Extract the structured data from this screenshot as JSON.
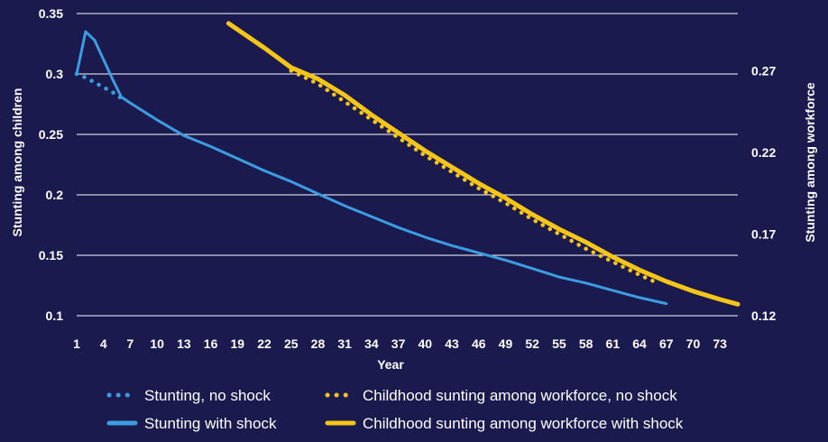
{
  "chart_data": {
    "type": "line",
    "title": "",
    "xlabel": "Year",
    "ylabel_left": "Stunting among children",
    "ylabel_right": "Stunting among workforce",
    "x_range": [
      1,
      75
    ],
    "x_tick_labels": [
      "1",
      "4",
      "7",
      "10",
      "13",
      "16",
      "19",
      "22",
      "25",
      "28",
      "31",
      "34",
      "37",
      "40",
      "43",
      "46",
      "49",
      "52",
      "55",
      "58",
      "61",
      "64",
      "67",
      "70",
      "73"
    ],
    "ylim_left": [
      0.1,
      0.35
    ],
    "y_ticks_left": [
      "0.1",
      "0.15",
      "0.2",
      "0.25",
      "0.3",
      "0.35"
    ],
    "ylim_right": [
      0.12,
      0.305
    ],
    "y_ticks_right": [
      "0.12",
      "0.17",
      "0.22",
      "0.27"
    ],
    "grid": true,
    "legend_position": "bottom",
    "colors": {
      "background": "#1b1a4f",
      "blue": "#3b9de0",
      "gold": "#f5c518",
      "grid": "#ffffff"
    },
    "series": [
      {
        "name": "Stunting, no shock",
        "axis": "left",
        "color": "#3b9de0",
        "style": "dotted",
        "x": [
          1,
          2,
          3,
          4,
          5,
          6
        ],
        "y": [
          0.3,
          0.297,
          0.293,
          0.289,
          0.285,
          0.28
        ]
      },
      {
        "name": "Stunting with shock",
        "axis": "left",
        "color": "#3b9de0",
        "style": "solid",
        "x": [
          1,
          2,
          3,
          4,
          5,
          6,
          7,
          10,
          13,
          16,
          19,
          22,
          25,
          28,
          31,
          34,
          37,
          40,
          43,
          46,
          49,
          52,
          55,
          58,
          61,
          64,
          67
        ],
        "y": [
          0.3,
          0.335,
          0.328,
          0.312,
          0.296,
          0.281,
          0.276,
          0.262,
          0.249,
          0.24,
          0.23,
          0.22,
          0.211,
          0.201,
          0.191,
          0.182,
          0.173,
          0.165,
          0.158,
          0.152,
          0.146,
          0.139,
          0.132,
          0.127,
          0.121,
          0.115,
          0.11
        ]
      },
      {
        "name": "Childhood sunting among workforce, no shock",
        "axis": "right",
        "color": "#f5c518",
        "style": "dotted",
        "x": [
          25,
          28,
          31,
          34,
          37,
          40,
          43,
          46,
          49,
          52,
          55,
          58,
          61,
          64,
          66
        ],
        "y": [
          0.27,
          0.262,
          0.251,
          0.24,
          0.229,
          0.218,
          0.208,
          0.198,
          0.189,
          0.179,
          0.17,
          0.161,
          0.153,
          0.145,
          0.14
        ]
      },
      {
        "name": "Childhood sunting among workforce with shock",
        "axis": "right",
        "color": "#f5c518",
        "style": "solid",
        "x": [
          18,
          22,
          25,
          28,
          31,
          34,
          37,
          40,
          43,
          46,
          49,
          52,
          55,
          58,
          61,
          64,
          67,
          70,
          73,
          75
        ],
        "y": [
          0.299,
          0.284,
          0.272,
          0.265,
          0.255,
          0.243,
          0.232,
          0.221,
          0.211,
          0.201,
          0.192,
          0.182,
          0.173,
          0.165,
          0.156,
          0.148,
          0.141,
          0.135,
          0.13,
          0.127
        ]
      }
    ]
  }
}
